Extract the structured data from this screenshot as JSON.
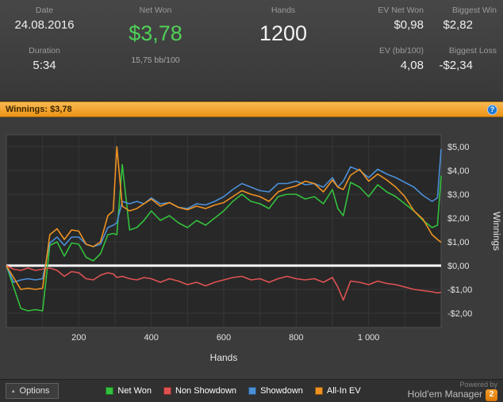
{
  "header": {
    "date_label": "Date",
    "date_value": "24.08.2016",
    "duration_label": "Duration",
    "duration_value": "5:34",
    "net_won_label": "Net Won",
    "net_won_value": "$3,78",
    "net_won_sub": "15,75 bb/100",
    "hands_label": "Hands",
    "hands_value": "1200",
    "ev_net_won_label": "EV Net Won",
    "ev_net_won_value": "$0,98",
    "ev_bb_label": "EV (bb/100)",
    "ev_bb_value": "4,08",
    "biggest_win_label": "Biggest Win",
    "biggest_win_value": "$2,82",
    "biggest_loss_label": "Biggest Loss",
    "biggest_loss_value": "-$2,34"
  },
  "winnings_bar": {
    "label": "Winnings: $3,78",
    "info_icon": "?"
  },
  "chart_data": {
    "type": "line",
    "title": "Winnings",
    "xlabel": "Hands",
    "ylabel": "Winnings",
    "xlim": [
      0,
      1200
    ],
    "ylim": [
      -2.6,
      5.5
    ],
    "grid": true,
    "zero_line": 0,
    "zero_line_color": "#ffffff",
    "legend_position": "bottom",
    "x_ticks": [
      200,
      400,
      600,
      800,
      1000
    ],
    "x_tick_labels": [
      "200",
      "400",
      "600",
      "800",
      "1 000"
    ],
    "y_ticks": [
      5,
      4,
      3,
      2,
      1,
      0,
      -1,
      -2
    ],
    "y_tick_labels": [
      "$5,00",
      "$4,00",
      "$3,00",
      "$2,00",
      "$1,00",
      "$0,00",
      "-$1,00",
      "-$2,00"
    ],
    "x": [
      0,
      20,
      40,
      60,
      80,
      100,
      120,
      140,
      160,
      180,
      200,
      220,
      240,
      260,
      280,
      295,
      305,
      320,
      340,
      360,
      380,
      400,
      425,
      450,
      475,
      500,
      525,
      550,
      575,
      600,
      625,
      650,
      675,
      700,
      725,
      750,
      775,
      800,
      825,
      850,
      875,
      900,
      915,
      930,
      950,
      975,
      1000,
      1025,
      1050,
      1075,
      1100,
      1125,
      1150,
      1175,
      1190,
      1200
    ],
    "series": [
      {
        "name": "Net Won",
        "color": "#33c13d",
        "values": [
          0,
          -0.9,
          -1.8,
          -1.9,
          -1.85,
          -1.9,
          0.85,
          1.0,
          0.4,
          0.95,
          0.9,
          0.35,
          0.2,
          0.5,
          1.3,
          1.35,
          1.3,
          4.25,
          1.5,
          1.6,
          1.9,
          2.3,
          1.9,
          2.1,
          1.8,
          1.6,
          1.9,
          1.7,
          2.0,
          2.3,
          2.7,
          3.0,
          2.7,
          2.6,
          2.4,
          2.9,
          3.0,
          3.0,
          2.8,
          2.9,
          2.6,
          3.2,
          2.4,
          2.1,
          3.5,
          3.3,
          2.9,
          3.4,
          3.1,
          2.9,
          2.6,
          2.3,
          1.9,
          1.6,
          1.7,
          3.78
        ]
      },
      {
        "name": "Non Showdown",
        "color": "#e05252",
        "values": [
          0,
          -0.15,
          -0.2,
          -0.1,
          -0.2,
          -0.15,
          -0.1,
          -0.2,
          -0.45,
          -0.25,
          -0.3,
          -0.55,
          -0.6,
          -0.4,
          -0.3,
          -0.35,
          -0.5,
          -0.45,
          -0.55,
          -0.6,
          -0.5,
          -0.55,
          -0.7,
          -0.55,
          -0.65,
          -0.8,
          -0.7,
          -0.85,
          -0.7,
          -0.6,
          -0.5,
          -0.45,
          -0.6,
          -0.55,
          -0.7,
          -0.55,
          -0.45,
          -0.55,
          -0.6,
          -0.55,
          -0.7,
          -0.5,
          -0.9,
          -1.45,
          -0.65,
          -0.7,
          -0.8,
          -0.65,
          -0.75,
          -0.8,
          -0.9,
          -1.0,
          -1.05,
          -1.1,
          -1.15,
          -1.12
        ]
      },
      {
        "name": "Showdown",
        "color": "#4a90d8",
        "values": [
          0,
          -0.7,
          -0.6,
          -0.55,
          -0.6,
          -0.55,
          0.95,
          1.2,
          0.85,
          1.2,
          1.2,
          0.9,
          0.8,
          0.9,
          1.6,
          1.7,
          1.8,
          2.7,
          2.6,
          2.7,
          2.6,
          2.85,
          2.6,
          2.65,
          2.45,
          2.4,
          2.6,
          2.55,
          2.7,
          2.9,
          3.2,
          3.45,
          3.3,
          3.15,
          3.1,
          3.45,
          3.45,
          3.55,
          3.4,
          3.45,
          3.3,
          3.7,
          3.3,
          3.55,
          4.15,
          4.0,
          3.7,
          4.05,
          3.85,
          3.7,
          3.5,
          3.3,
          2.95,
          2.7,
          2.85,
          4.9
        ]
      },
      {
        "name": "All-In EV",
        "color": "#ef9222",
        "values": [
          0,
          -0.5,
          -1.0,
          -0.95,
          -1.0,
          -0.95,
          1.3,
          1.55,
          1.1,
          1.5,
          1.45,
          0.9,
          0.8,
          1.0,
          2.1,
          2.3,
          5.0,
          2.5,
          2.3,
          2.4,
          2.6,
          2.8,
          2.5,
          2.65,
          2.45,
          2.35,
          2.5,
          2.4,
          2.55,
          2.65,
          2.9,
          3.15,
          3.0,
          2.9,
          2.7,
          3.1,
          3.25,
          3.35,
          3.55,
          3.45,
          3.1,
          3.6,
          3.3,
          3.2,
          3.8,
          4.05,
          3.55,
          3.85,
          3.6,
          3.3,
          2.9,
          2.3,
          1.95,
          1.3,
          1.1,
          0.98
        ]
      }
    ]
  },
  "footer": {
    "options_label": "Options",
    "options_chevron": "▴",
    "legend": [
      {
        "label": "Net Won",
        "color": "#33c13d"
      },
      {
        "label": "Non Showdown",
        "color": "#e05252"
      },
      {
        "label": "Showdown",
        "color": "#4a90d8"
      },
      {
        "label": "All-In EV",
        "color": "#ef9222"
      }
    ],
    "powered_by": "Powered by",
    "brand": "Hold'em Manager",
    "brand_badge": "2"
  }
}
